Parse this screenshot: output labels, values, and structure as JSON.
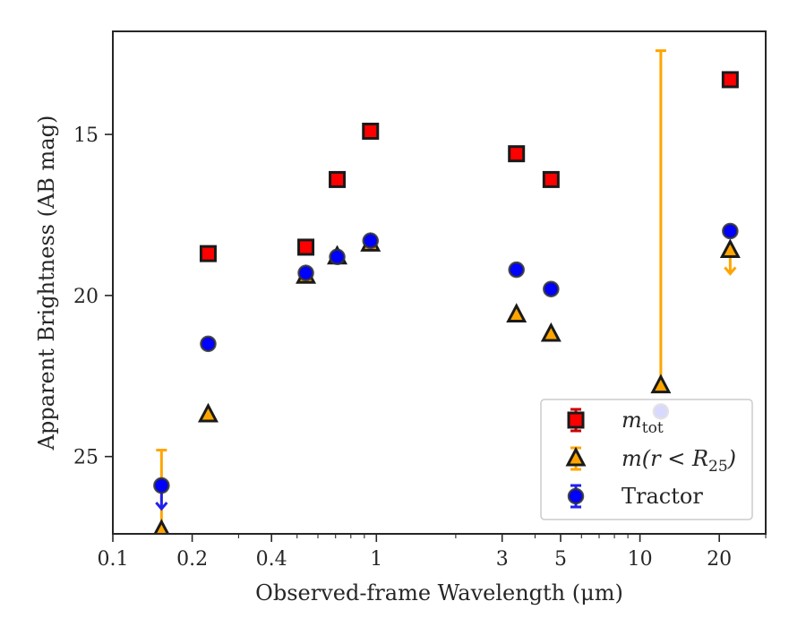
{
  "chart_data": {
    "type": "scatter",
    "xlabel": "Observed-frame Wavelength (μm)",
    "ylabel": "Apparent Brightness (AB mag)",
    "xscale": "log",
    "xlim": [
      0.1,
      30
    ],
    "ylim": [
      27.4,
      11.8
    ],
    "y_inverted": true,
    "grid": false,
    "legend_position": "lower-right",
    "x_ticks": [
      {
        "value": 0.1,
        "label": "0.1"
      },
      {
        "value": 0.2,
        "label": "0.2"
      },
      {
        "value": 0.4,
        "label": "0.4"
      },
      {
        "value": 1,
        "label": "1"
      },
      {
        "value": 3,
        "label": "3"
      },
      {
        "value": 5,
        "label": "5"
      },
      {
        "value": 10,
        "label": "10"
      },
      {
        "value": 20,
        "label": "20"
      }
    ],
    "y_ticks": [
      {
        "value": 15,
        "label": "15"
      },
      {
        "value": 20,
        "label": "20"
      },
      {
        "value": 25,
        "label": "25"
      }
    ],
    "series": [
      {
        "name": "m_tot",
        "legend_main": "m",
        "legend_sub": "tot",
        "marker": "square",
        "color": "#ff0000",
        "edge": "#1a1a1a",
        "errcolor": "#cc0000",
        "points": [
          {
            "x": 0.23,
            "y": 18.7
          },
          {
            "x": 0.54,
            "y": 18.5
          },
          {
            "x": 0.71,
            "y": 16.4
          },
          {
            "x": 0.95,
            "y": 14.9
          },
          {
            "x": 3.4,
            "y": 15.6
          },
          {
            "x": 4.6,
            "y": 16.4
          },
          {
            "x": 22.0,
            "y": 13.3
          }
        ]
      },
      {
        "name": "m(r < R25)",
        "legend_main": "m(r < R",
        "legend_sub": "25",
        "legend_tail": ")",
        "marker": "triangle",
        "color": "#ffa500",
        "edge": "#1a1a1a",
        "errcolor": "#ffa500",
        "points": [
          {
            "x": 0.153,
            "y": 27.3,
            "err_low": 24.8,
            "err_high": 27.3
          },
          {
            "x": 0.23,
            "y": 23.7
          },
          {
            "x": 0.54,
            "y": 19.4
          },
          {
            "x": 0.71,
            "y": 18.8
          },
          {
            "x": 0.95,
            "y": 18.4
          },
          {
            "x": 3.4,
            "y": 20.6
          },
          {
            "x": 4.6,
            "y": 21.2
          },
          {
            "x": 12.0,
            "y": 22.8,
            "err_low": 12.4,
            "err_high": 22.8
          },
          {
            "x": 22.0,
            "y": 18.6,
            "upper_limit": true
          }
        ]
      },
      {
        "name": "Tractor",
        "legend_main": "Tractor",
        "marker": "circle",
        "color": "#0000ff",
        "edge": "#333333",
        "errcolor": "#2020ee",
        "points": [
          {
            "x": 0.153,
            "y": 25.9,
            "upper_limit": true
          },
          {
            "x": 0.23,
            "y": 21.5
          },
          {
            "x": 0.54,
            "y": 19.3
          },
          {
            "x": 0.71,
            "y": 18.8
          },
          {
            "x": 0.95,
            "y": 18.3
          },
          {
            "x": 3.4,
            "y": 19.2
          },
          {
            "x": 4.6,
            "y": 19.8
          },
          {
            "x": 12.0,
            "y": 23.6
          },
          {
            "x": 22.0,
            "y": 18.0
          }
        ]
      }
    ]
  }
}
